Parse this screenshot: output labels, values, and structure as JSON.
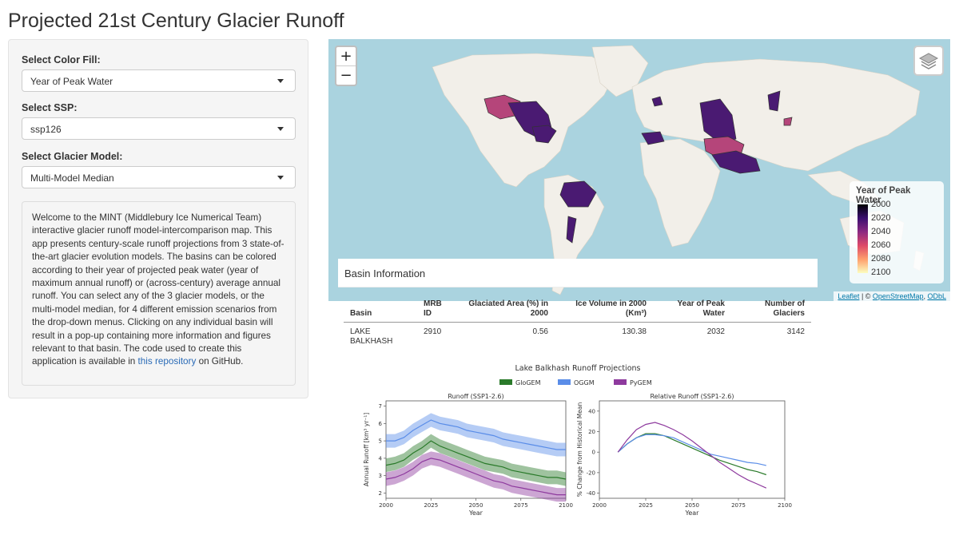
{
  "page": {
    "title": "Projected 21st Century Glacier Runoff"
  },
  "sidebar": {
    "color_fill": {
      "label": "Select Color Fill:",
      "value": "Year of Peak Water"
    },
    "ssp": {
      "label": "Select SSP:",
      "value": "ssp126"
    },
    "model": {
      "label": "Select Glacier Model:",
      "value": "Multi-Model Median"
    },
    "welcome_text": "Welcome to the MINT (Middlebury Ice Numerical Team) interactive glacier runoff model-intercomparison map. This app presents century-scale runoff projections from 3 state-of-the-art glacier evolution models. The basins can be colored according to their year of projected peak water (year of maximum annual runoff) or (across-century) average annual runoff. You can select any of the 3 glacier models, or the multi-model median, for 4 different emission scenarios from the drop-down menus. Clicking on any individual basin will result in a pop-up containing more information and figures relevant to that basin. The code used to create this application is available in",
    "welcome_link": "this repository",
    "welcome_tail": "on GitHub."
  },
  "map": {
    "zoom_in": "+",
    "zoom_out": "−",
    "legend": {
      "title": "Year of Peak Water",
      "ticks": [
        "2000",
        "2020",
        "2040",
        "2060",
        "2080",
        "2100"
      ]
    },
    "attribution": {
      "leaflet": "Leaflet",
      "sep": " | © ",
      "osm": "OpenStreetMap",
      "sep2": ", ",
      "odbl": "ODbL"
    },
    "colors": {
      "water": "#aad3df",
      "land": "#f2efe9",
      "early": "#4a1a72",
      "late": "#b5457a"
    }
  },
  "basin_info": {
    "header": "Basin Information",
    "columns": [
      "Basin",
      "MRB ID",
      "Glaciated Area (%) in 2000",
      "Ice Volume in 2000 (Km³)",
      "Year of Peak Water",
      "Number of Glaciers"
    ],
    "row": [
      "LAKE BALKHASH",
      "2910",
      "0.56",
      "130.38",
      "2032",
      "3142"
    ]
  },
  "chart_data": [
    {
      "type": "line",
      "suptitle": "Lake Balkhash Runoff Projections",
      "title": "Runoff (SSP1-2.6)",
      "xlabel": "Year",
      "ylabel": "Annual Runoff  [km³ yr⁻¹]",
      "xlim": [
        2000,
        2100
      ],
      "ylim": [
        1.7,
        7.3
      ],
      "xticks": [
        2000,
        2025,
        2050,
        2075,
        2100
      ],
      "yticks": [
        2,
        3,
        4,
        5,
        6,
        7
      ],
      "legend": [
        "GloGEM",
        "OGGM",
        "PyGEM"
      ],
      "x": [
        2000,
        2005,
        2010,
        2015,
        2020,
        2025,
        2030,
        2035,
        2040,
        2045,
        2050,
        2055,
        2060,
        2065,
        2070,
        2075,
        2080,
        2085,
        2090,
        2095,
        2100
      ],
      "series": [
        {
          "name": "GloGEM",
          "color": "#2a7a2a",
          "values": [
            3.6,
            3.7,
            3.9,
            4.3,
            4.6,
            5.0,
            4.7,
            4.5,
            4.3,
            4.1,
            3.9,
            3.7,
            3.6,
            3.5,
            3.3,
            3.2,
            3.1,
            3.0,
            2.9,
            2.9,
            2.8
          ]
        },
        {
          "name": "OGGM",
          "color": "#5a8de8",
          "values": [
            5.0,
            5.0,
            5.2,
            5.6,
            5.9,
            6.2,
            6.0,
            5.9,
            5.8,
            5.6,
            5.5,
            5.4,
            5.3,
            5.1,
            5.0,
            4.9,
            4.8,
            4.7,
            4.6,
            4.5,
            4.5
          ]
        },
        {
          "name": "PyGEM",
          "color": "#8e3a9e",
          "values": [
            2.8,
            2.9,
            3.1,
            3.4,
            3.8,
            4.0,
            3.9,
            3.7,
            3.5,
            3.3,
            3.1,
            2.9,
            2.7,
            2.6,
            2.4,
            2.3,
            2.2,
            2.1,
            2.0,
            1.9,
            1.9
          ]
        }
      ]
    },
    {
      "type": "line",
      "title": "Relative Runoff (SSP1-2.6)",
      "xlabel": "Year",
      "ylabel": "% Change from Historical Mean",
      "xlim": [
        2000,
        2100
      ],
      "ylim": [
        -45,
        50
      ],
      "xticks": [
        2000,
        2025,
        2050,
        2075,
        2100
      ],
      "yticks": [
        -40,
        -20,
        0,
        20,
        40
      ],
      "x": [
        2010,
        2015,
        2020,
        2025,
        2030,
        2035,
        2040,
        2045,
        2050,
        2055,
        2060,
        2065,
        2070,
        2075,
        2080,
        2085,
        2090
      ],
      "series": [
        {
          "name": "GloGEM",
          "color": "#2a7a2a",
          "values": [
            0,
            8,
            14,
            18,
            18,
            16,
            12,
            8,
            4,
            0,
            -4,
            -8,
            -11,
            -14,
            -17,
            -19,
            -22
          ]
        },
        {
          "name": "OGGM",
          "color": "#5a8de8",
          "values": [
            0,
            8,
            14,
            17,
            17,
            16,
            14,
            10,
            6,
            2,
            -2,
            -4,
            -6,
            -8,
            -10,
            -11,
            -13
          ]
        },
        {
          "name": "PyGEM",
          "color": "#8e3a9e",
          "values": [
            0,
            12,
            22,
            27,
            29,
            26,
            22,
            17,
            11,
            4,
            -3,
            -10,
            -16,
            -22,
            -27,
            -31,
            -35
          ]
        }
      ]
    }
  ]
}
